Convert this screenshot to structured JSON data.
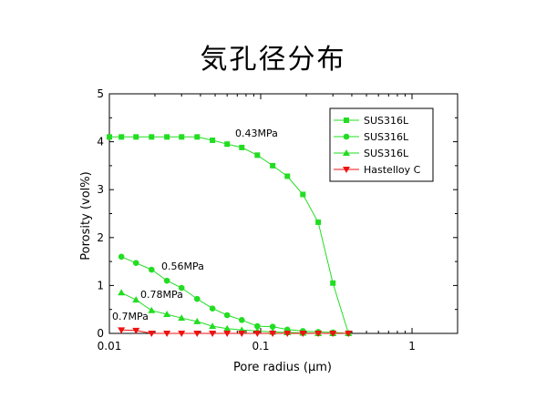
{
  "chart_data": {
    "type": "line",
    "title": "気孔径分布",
    "xlabel": "Pore radius (µm)",
    "ylabel": "Porosity (vol%)",
    "xscale": "log",
    "xlim": [
      0.01,
      2
    ],
    "ylim": [
      0,
      5
    ],
    "x_ticks": [
      "0.01",
      "0.1",
      "1"
    ],
    "y_ticks": [
      "0",
      "1",
      "2",
      "3",
      "4",
      "5"
    ],
    "grid": false,
    "legend_position": "top-right",
    "series": [
      {
        "name": "SUS316L",
        "marker": "square",
        "color": "#22dd22",
        "annotation": "0.43MPa",
        "x": [
          0.01,
          0.012,
          0.015,
          0.019,
          0.024,
          0.03,
          0.038,
          0.048,
          0.06,
          0.075,
          0.095,
          0.12,
          0.15,
          0.19,
          0.24,
          0.3,
          0.38
        ],
        "y": [
          4.1,
          4.1,
          4.1,
          4.1,
          4.1,
          4.1,
          4.1,
          4.03,
          3.95,
          3.88,
          3.72,
          3.5,
          3.28,
          2.9,
          2.32,
          1.05,
          0.0
        ]
      },
      {
        "name": "SUS316L",
        "marker": "circle",
        "color": "#22dd22",
        "annotation": "0.56MPa",
        "x": [
          0.012,
          0.015,
          0.019,
          0.024,
          0.03,
          0.038,
          0.048,
          0.06,
          0.075,
          0.095,
          0.12,
          0.15,
          0.19,
          0.24,
          0.3,
          0.38
        ],
        "y": [
          1.6,
          1.47,
          1.33,
          1.1,
          0.95,
          0.72,
          0.52,
          0.38,
          0.28,
          0.15,
          0.14,
          0.08,
          0.05,
          0.03,
          0.02,
          0.0
        ]
      },
      {
        "name": "SUS316L",
        "marker": "triangle-up",
        "color": "#22dd22",
        "annotation": "0.78MPa",
        "x": [
          0.012,
          0.015,
          0.019,
          0.024,
          0.03,
          0.038,
          0.048,
          0.06,
          0.075,
          0.095,
          0.12,
          0.15,
          0.19,
          0.24,
          0.3,
          0.38
        ],
        "y": [
          0.85,
          0.7,
          0.48,
          0.4,
          0.32,
          0.25,
          0.15,
          0.1,
          0.07,
          0.05,
          0.03,
          0.02,
          0.01,
          0.0,
          0.0,
          0.0
        ]
      },
      {
        "name": "Hastelloy C",
        "marker": "triangle-down",
        "color": "#ee1111",
        "annotation": "0.7MPa",
        "x": [
          0.012,
          0.015,
          0.019,
          0.024,
          0.03,
          0.038,
          0.048,
          0.06,
          0.075,
          0.095,
          0.12,
          0.15,
          0.19,
          0.24,
          0.3,
          0.38
        ],
        "y": [
          0.07,
          0.06,
          0.0,
          0.0,
          0.0,
          0.0,
          0.0,
          0.0,
          0.0,
          0.0,
          0.0,
          0.0,
          0.0,
          0.0,
          0.0,
          0.0
        ]
      }
    ]
  }
}
